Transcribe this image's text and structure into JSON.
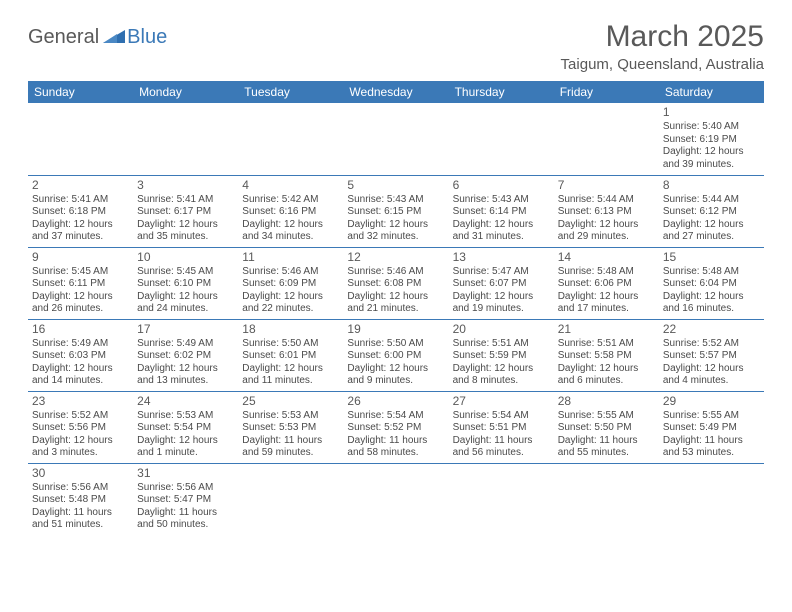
{
  "logo": {
    "text_general": "General",
    "text_blue": "Blue",
    "triangle_color": "#2f6fb0",
    "text_general_color": "#595959",
    "text_blue_color": "#3b79b7"
  },
  "title": "March 2025",
  "location": "Taigum, Queensland, Australia",
  "colors": {
    "header_bg": "#3b79b7",
    "header_text": "#ffffff",
    "cell_border": "#3b79b7",
    "text": "#595959",
    "body_text": "#4a4a4a",
    "background": "#ffffff"
  },
  "fonts": {
    "title_size": 30,
    "location_size": 15,
    "daylabel_size": 12,
    "daynum_size": 12,
    "detail_size": 10
  },
  "day_labels": [
    "Sunday",
    "Monday",
    "Tuesday",
    "Wednesday",
    "Thursday",
    "Friday",
    "Saturday"
  ],
  "weeks": [
    [
      null,
      null,
      null,
      null,
      null,
      null,
      {
        "n": "1",
        "sr": "5:40 AM",
        "ss": "6:19 PM",
        "dl": "12 hours and 39 minutes."
      }
    ],
    [
      {
        "n": "2",
        "sr": "5:41 AM",
        "ss": "6:18 PM",
        "dl": "12 hours and 37 minutes."
      },
      {
        "n": "3",
        "sr": "5:41 AM",
        "ss": "6:17 PM",
        "dl": "12 hours and 35 minutes."
      },
      {
        "n": "4",
        "sr": "5:42 AM",
        "ss": "6:16 PM",
        "dl": "12 hours and 34 minutes."
      },
      {
        "n": "5",
        "sr": "5:43 AM",
        "ss": "6:15 PM",
        "dl": "12 hours and 32 minutes."
      },
      {
        "n": "6",
        "sr": "5:43 AM",
        "ss": "6:14 PM",
        "dl": "12 hours and 31 minutes."
      },
      {
        "n": "7",
        "sr": "5:44 AM",
        "ss": "6:13 PM",
        "dl": "12 hours and 29 minutes."
      },
      {
        "n": "8",
        "sr": "5:44 AM",
        "ss": "6:12 PM",
        "dl": "12 hours and 27 minutes."
      }
    ],
    [
      {
        "n": "9",
        "sr": "5:45 AM",
        "ss": "6:11 PM",
        "dl": "12 hours and 26 minutes."
      },
      {
        "n": "10",
        "sr": "5:45 AM",
        "ss": "6:10 PM",
        "dl": "12 hours and 24 minutes."
      },
      {
        "n": "11",
        "sr": "5:46 AM",
        "ss": "6:09 PM",
        "dl": "12 hours and 22 minutes."
      },
      {
        "n": "12",
        "sr": "5:46 AM",
        "ss": "6:08 PM",
        "dl": "12 hours and 21 minutes."
      },
      {
        "n": "13",
        "sr": "5:47 AM",
        "ss": "6:07 PM",
        "dl": "12 hours and 19 minutes."
      },
      {
        "n": "14",
        "sr": "5:48 AM",
        "ss": "6:06 PM",
        "dl": "12 hours and 17 minutes."
      },
      {
        "n": "15",
        "sr": "5:48 AM",
        "ss": "6:04 PM",
        "dl": "12 hours and 16 minutes."
      }
    ],
    [
      {
        "n": "16",
        "sr": "5:49 AM",
        "ss": "6:03 PM",
        "dl": "12 hours and 14 minutes."
      },
      {
        "n": "17",
        "sr": "5:49 AM",
        "ss": "6:02 PM",
        "dl": "12 hours and 13 minutes."
      },
      {
        "n": "18",
        "sr": "5:50 AM",
        "ss": "6:01 PM",
        "dl": "12 hours and 11 minutes."
      },
      {
        "n": "19",
        "sr": "5:50 AM",
        "ss": "6:00 PM",
        "dl": "12 hours and 9 minutes."
      },
      {
        "n": "20",
        "sr": "5:51 AM",
        "ss": "5:59 PM",
        "dl": "12 hours and 8 minutes."
      },
      {
        "n": "21",
        "sr": "5:51 AM",
        "ss": "5:58 PM",
        "dl": "12 hours and 6 minutes."
      },
      {
        "n": "22",
        "sr": "5:52 AM",
        "ss": "5:57 PM",
        "dl": "12 hours and 4 minutes."
      }
    ],
    [
      {
        "n": "23",
        "sr": "5:52 AM",
        "ss": "5:56 PM",
        "dl": "12 hours and 3 minutes."
      },
      {
        "n": "24",
        "sr": "5:53 AM",
        "ss": "5:54 PM",
        "dl": "12 hours and 1 minute."
      },
      {
        "n": "25",
        "sr": "5:53 AM",
        "ss": "5:53 PM",
        "dl": "11 hours and 59 minutes."
      },
      {
        "n": "26",
        "sr": "5:54 AM",
        "ss": "5:52 PM",
        "dl": "11 hours and 58 minutes."
      },
      {
        "n": "27",
        "sr": "5:54 AM",
        "ss": "5:51 PM",
        "dl": "11 hours and 56 minutes."
      },
      {
        "n": "28",
        "sr": "5:55 AM",
        "ss": "5:50 PM",
        "dl": "11 hours and 55 minutes."
      },
      {
        "n": "29",
        "sr": "5:55 AM",
        "ss": "5:49 PM",
        "dl": "11 hours and 53 minutes."
      }
    ],
    [
      {
        "n": "30",
        "sr": "5:56 AM",
        "ss": "5:48 PM",
        "dl": "11 hours and 51 minutes."
      },
      {
        "n": "31",
        "sr": "5:56 AM",
        "ss": "5:47 PM",
        "dl": "11 hours and 50 minutes."
      },
      null,
      null,
      null,
      null,
      null
    ]
  ],
  "labels": {
    "sunrise": "Sunrise: ",
    "sunset": "Sunset: ",
    "daylight": "Daylight: "
  }
}
